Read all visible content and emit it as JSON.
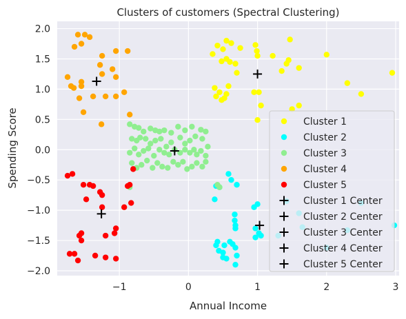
{
  "chart_data": {
    "type": "scatter",
    "title": "Clusters of customers (Spectral Clustering)",
    "xlabel": "Annual Income",
    "ylabel": "Spending Score",
    "xlim": [
      -1.9,
      3.05
    ],
    "ylim": [
      -2.08,
      2.12
    ],
    "xticks": [
      -1,
      0,
      1,
      2,
      3
    ],
    "xtick_labels": [
      "−1",
      "0",
      "1",
      "2",
      "3"
    ],
    "yticks": [
      -2.0,
      -1.5,
      -1.0,
      -0.5,
      0.0,
      0.5,
      1.0,
      1.5,
      2.0
    ],
    "ytick_labels": [
      "−2.0",
      "−1.5",
      "−1.0",
      "−0.5",
      "0.0",
      "0.5",
      "1.0",
      "1.5",
      "2.0"
    ],
    "grid": true,
    "background": "#eaeaf2",
    "legend_position": "lower-right",
    "series": [
      {
        "name": "Cluster 1",
        "color": "#ffff00",
        "marker": "circle",
        "points": [
          [
            0.35,
            1.58
          ],
          [
            0.42,
            1.72
          ],
          [
            0.5,
            1.66
          ],
          [
            0.55,
            1.8
          ],
          [
            0.62,
            1.76
          ],
          [
            0.75,
            1.68
          ],
          [
            0.97,
            1.73
          ],
          [
            0.99,
            1.63
          ],
          [
            1.0,
            1.55
          ],
          [
            1.22,
            1.55
          ],
          [
            1.47,
            1.82
          ],
          [
            0.48,
            1.46
          ],
          [
            0.55,
            1.5
          ],
          [
            0.6,
            1.45
          ],
          [
            0.68,
            1.42
          ],
          [
            0.7,
            1.27
          ],
          [
            1.35,
            1.3
          ],
          [
            1.42,
            1.42
          ],
          [
            1.45,
            1.48
          ],
          [
            1.6,
            1.35
          ],
          [
            2.0,
            1.57
          ],
          [
            2.95,
            1.27
          ],
          [
            2.3,
            1.1
          ],
          [
            2.5,
            0.92
          ],
          [
            0.38,
            1.02
          ],
          [
            0.45,
            0.95
          ],
          [
            0.52,
            0.85
          ],
          [
            0.48,
            0.82
          ],
          [
            0.55,
            0.92
          ],
          [
            0.4,
            0.88
          ],
          [
            0.58,
            1.05
          ],
          [
            0.95,
            0.95
          ],
          [
            1.02,
            0.95
          ],
          [
            1.05,
            0.73
          ],
          [
            1.5,
            0.67
          ],
          [
            1.6,
            0.73
          ],
          [
            1.0,
            0.49
          ]
        ]
      },
      {
        "name": "Cluster 2",
        "color": "#00ffff",
        "marker": "circle",
        "points": [
          [
            0.58,
            -0.4
          ],
          [
            0.62,
            -0.5
          ],
          [
            0.7,
            -0.58
          ],
          [
            0.45,
            -0.62
          ],
          [
            0.38,
            -0.82
          ],
          [
            0.4,
            -0.6
          ],
          [
            0.95,
            -0.95
          ],
          [
            1.0,
            -0.9
          ],
          [
            1.42,
            -0.85
          ],
          [
            1.6,
            -1.05
          ],
          [
            0.67,
            -1.07
          ],
          [
            0.67,
            -1.17
          ],
          [
            0.68,
            -1.25
          ],
          [
            0.68,
            -1.3
          ],
          [
            0.97,
            -1.3
          ],
          [
            1.02,
            -1.38
          ],
          [
            1.05,
            -1.42
          ],
          [
            0.97,
            -1.45
          ],
          [
            1.3,
            -1.42
          ],
          [
            1.65,
            -1.28
          ],
          [
            2.0,
            -1.62
          ],
          [
            2.3,
            -1.33
          ],
          [
            2.5,
            -0.88
          ],
          [
            2.98,
            -1.25
          ],
          [
            0.42,
            -1.52
          ],
          [
            0.4,
            -1.58
          ],
          [
            0.44,
            -1.67
          ],
          [
            0.5,
            -1.7
          ],
          [
            0.52,
            -1.58
          ],
          [
            0.6,
            -1.52
          ],
          [
            0.64,
            -1.56
          ],
          [
            0.68,
            -1.62
          ],
          [
            0.7,
            -1.75
          ],
          [
            0.5,
            -1.78
          ],
          [
            0.55,
            -1.8
          ],
          [
            0.68,
            -1.9
          ]
        ]
      },
      {
        "name": "Cluster 3",
        "color": "#90ee90",
        "marker": "circle",
        "points": [
          [
            -0.85,
            0.42
          ],
          [
            -0.78,
            0.38
          ],
          [
            -0.72,
            0.36
          ],
          [
            -0.65,
            0.3
          ],
          [
            -0.55,
            0.35
          ],
          [
            -0.48,
            0.32
          ],
          [
            -0.42,
            0.3
          ],
          [
            -0.35,
            0.32
          ],
          [
            -0.25,
            0.28
          ],
          [
            -0.15,
            0.38
          ],
          [
            -0.05,
            0.32
          ],
          [
            0.05,
            0.38
          ],
          [
            0.18,
            0.33
          ],
          [
            0.25,
            0.3
          ],
          [
            -0.82,
            0.18
          ],
          [
            -0.75,
            0.15
          ],
          [
            -0.7,
            0.2
          ],
          [
            -0.62,
            0.18
          ],
          [
            -0.55,
            0.1
          ],
          [
            -0.48,
            0.15
          ],
          [
            -0.4,
            0.18
          ],
          [
            -0.32,
            0.05
          ],
          [
            -0.25,
            0.12
          ],
          [
            -0.12,
            0.2
          ],
          [
            -0.05,
            0.1
          ],
          [
            0.02,
            0.15
          ],
          [
            0.1,
            0.22
          ],
          [
            0.2,
            0.18
          ],
          [
            0.28,
            0.05
          ],
          [
            -0.85,
            -0.05
          ],
          [
            -0.78,
            0.02
          ],
          [
            -0.72,
            -0.08
          ],
          [
            -0.65,
            -0.02
          ],
          [
            -0.58,
            0.02
          ],
          [
            -0.5,
            -0.1
          ],
          [
            -0.42,
            0.0
          ],
          [
            -0.35,
            -0.05
          ],
          [
            -0.28,
            -0.08
          ],
          [
            -0.2,
            0.0
          ],
          [
            -0.12,
            -0.05
          ],
          [
            -0.05,
            0.0
          ],
          [
            0.02,
            -0.05
          ],
          [
            0.08,
            0.0
          ],
          [
            0.12,
            -0.08
          ],
          [
            0.18,
            -0.02
          ],
          [
            0.25,
            -0.1
          ],
          [
            -0.82,
            -0.22
          ],
          [
            -0.75,
            -0.3
          ],
          [
            -0.68,
            -0.25
          ],
          [
            -0.6,
            -0.18
          ],
          [
            -0.52,
            -0.3
          ],
          [
            -0.45,
            -0.22
          ],
          [
            -0.38,
            -0.28
          ],
          [
            -0.3,
            -0.3
          ],
          [
            -0.22,
            -0.2
          ],
          [
            -0.15,
            -0.25
          ],
          [
            -0.08,
            -0.2
          ],
          [
            -0.02,
            -0.32
          ],
          [
            0.05,
            -0.28
          ],
          [
            0.12,
            -0.22
          ],
          [
            0.2,
            -0.28
          ],
          [
            0.25,
            -0.2
          ],
          [
            0.42,
            -0.58
          ],
          [
            0.45,
            -0.62
          ],
          [
            -0.85,
            -0.62
          ]
        ]
      },
      {
        "name": "Cluster 4",
        "color": "#ffa500",
        "marker": "circle",
        "points": [
          [
            -1.6,
            1.9
          ],
          [
            -1.5,
            1.9
          ],
          [
            -1.43,
            1.86
          ],
          [
            -1.65,
            1.7
          ],
          [
            -1.55,
            1.75
          ],
          [
            -1.25,
            1.55
          ],
          [
            -1.05,
            1.63
          ],
          [
            -0.88,
            1.63
          ],
          [
            -1.75,
            1.2
          ],
          [
            -1.7,
            1.05
          ],
          [
            -1.66,
            1.02
          ],
          [
            -1.55,
            1.12
          ],
          [
            -1.55,
            1.05
          ],
          [
            -1.28,
            1.4
          ],
          [
            -1.25,
            1.25
          ],
          [
            -1.1,
            1.33
          ],
          [
            -1.05,
            1.2
          ],
          [
            -0.93,
            0.95
          ],
          [
            -1.2,
            0.88
          ],
          [
            -1.05,
            0.88
          ],
          [
            -1.38,
            0.88
          ],
          [
            -1.58,
            0.85
          ],
          [
            -1.52,
            0.62
          ],
          [
            -0.85,
            0.58
          ],
          [
            -1.26,
            0.42
          ]
        ]
      },
      {
        "name": "Cluster 5",
        "color": "#ff0000",
        "marker": "circle",
        "points": [
          [
            -1.75,
            -0.43
          ],
          [
            -1.68,
            -0.4
          ],
          [
            -1.52,
            -0.58
          ],
          [
            -1.43,
            -0.58
          ],
          [
            -1.38,
            -0.6
          ],
          [
            -1.28,
            -0.7
          ],
          [
            -1.25,
            -0.75
          ],
          [
            -1.25,
            -0.95
          ],
          [
            -1.48,
            -0.82
          ],
          [
            -0.85,
            -0.58
          ],
          [
            -0.8,
            -0.32
          ],
          [
            -0.88,
            -0.6
          ],
          [
            -0.83,
            -0.88
          ],
          [
            -0.93,
            -0.95
          ],
          [
            -1.05,
            -1.3
          ],
          [
            -1.07,
            -1.38
          ],
          [
            -1.2,
            -1.42
          ],
          [
            -1.55,
            -1.38
          ],
          [
            -1.58,
            -1.42
          ],
          [
            -1.55,
            -1.5
          ],
          [
            -1.72,
            -1.72
          ],
          [
            -1.65,
            -1.72
          ],
          [
            -1.6,
            -1.83
          ],
          [
            -1.35,
            -1.75
          ],
          [
            -1.2,
            -1.78
          ],
          [
            -1.05,
            -1.8
          ]
        ]
      }
    ],
    "centers": [
      {
        "name": "Cluster 1 Center",
        "x": 1.0,
        "y": 1.25
      },
      {
        "name": "Cluster 2 Center",
        "x": 1.03,
        "y": -1.25
      },
      {
        "name": "Cluster 3 Center",
        "x": -0.2,
        "y": -0.02
      },
      {
        "name": "Cluster 4 Center",
        "x": -1.33,
        "y": 1.13
      },
      {
        "name": "Cluster 5 Center",
        "x": -1.26,
        "y": -1.06
      }
    ],
    "center_marker": "plus",
    "center_color": "#000000"
  }
}
